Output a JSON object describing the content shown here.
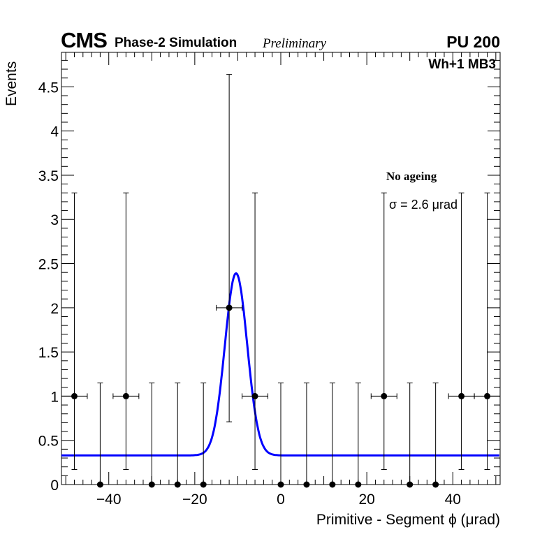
{
  "header": {
    "cms": "CMS",
    "sim": "Phase-2 Simulation",
    "prelim": "Preliminary",
    "pu": "PU 200"
  },
  "chart_data": {
    "type": "scatter",
    "title": "Wh+1 MB3",
    "xlabel": "Primitive - Segment ϕ (μrad)",
    "ylabel": "Events",
    "xlim": [
      -51,
      51
    ],
    "ylim": [
      0,
      4.89
    ],
    "xticks": [
      -40,
      -20,
      0,
      20,
      40
    ],
    "xtick_labels": [
      "−40",
      "−20",
      "0",
      "20",
      "40"
    ],
    "yticks": [
      0,
      0.5,
      1,
      1.5,
      2,
      2.5,
      3,
      3.5,
      4,
      4.5
    ],
    "ytick_labels": [
      "0",
      "0.5",
      "1",
      "1.5",
      "2",
      "2.5",
      "3",
      "3.5",
      "4",
      "4.5"
    ],
    "bin_width": 6,
    "x": [
      -48,
      -42,
      -36,
      -30,
      -24,
      -18,
      -12,
      -6,
      0,
      6,
      12,
      18,
      24,
      30,
      36,
      42,
      48
    ],
    "y": [
      1,
      0,
      1,
      0,
      0,
      0,
      2,
      1,
      0,
      0,
      0,
      0,
      1,
      0,
      0,
      1,
      1
    ],
    "fit": {
      "type": "gaussian+constant",
      "constant": 0.33,
      "amplitude": 2.06,
      "mean": -10.4,
      "sigma": 2.6,
      "color": "#0000ff"
    },
    "annotations": {
      "ageing": "No ageing",
      "sigma": "σ = 2.6  μrad"
    }
  }
}
